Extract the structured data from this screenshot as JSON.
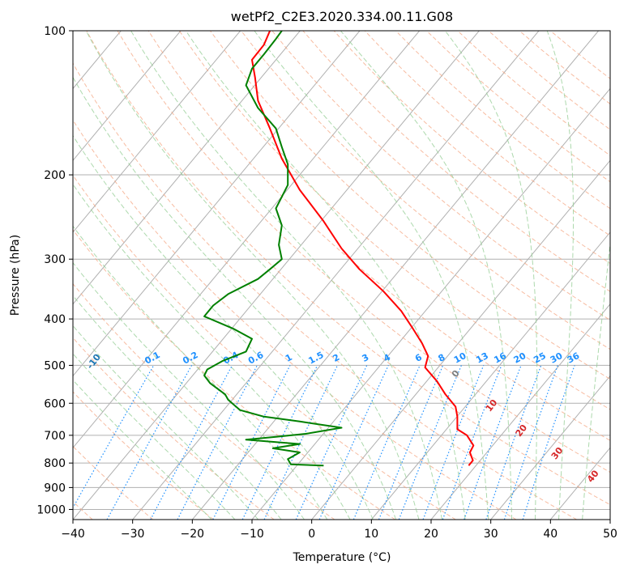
{
  "chart_data": {
    "type": "line",
    "title": "wetPf2_C2E3.2020.334.00.11.G08",
    "xlabel": "Temperature (°C)",
    "ylabel": "Pressure (hPa)",
    "xlim": [
      -40,
      50
    ],
    "ylim": [
      1050,
      100
    ],
    "yscale": "log",
    "x_ticks": [
      "−40",
      "−30",
      "−20",
      "−10",
      "0",
      "10",
      "20",
      "30",
      "40",
      "50"
    ],
    "y_ticks": [
      "100",
      "200",
      "300",
      "400",
      "500",
      "600",
      "700",
      "800",
      "900",
      "1000"
    ],
    "grid": true,
    "series": [
      {
        "role": "temperature",
        "color": "#ff0000",
        "points": [
          [
            26.3,
            810
          ],
          [
            27.0,
            790
          ],
          [
            26.5,
            760
          ],
          [
            27.1,
            735
          ],
          [
            26.0,
            700
          ],
          [
            24.4,
            680
          ],
          [
            24.4,
            640
          ],
          [
            24.1,
            610
          ],
          [
            22.4,
            575
          ],
          [
            21.0,
            540
          ],
          [
            19.0,
            505
          ],
          [
            19.5,
            478
          ],
          [
            18.5,
            450
          ],
          [
            17.0,
            420
          ],
          [
            15.0,
            385
          ],
          [
            12.0,
            350
          ],
          [
            8.0,
            315
          ],
          [
            5.0,
            285
          ],
          [
            2.0,
            250
          ],
          [
            -2.0,
            215
          ],
          [
            -5.0,
            185
          ],
          [
            -7.0,
            160
          ],
          [
            -9.0,
            140
          ],
          [
            -9.5,
            125
          ],
          [
            -10.0,
            115
          ],
          [
            -8.0,
            107
          ],
          [
            -7.0,
            100
          ]
        ]
      },
      {
        "role": "dewpoint",
        "color": "#008000",
        "points": [
          [
            2.0,
            810
          ],
          [
            -3.5,
            805
          ],
          [
            -4.0,
            785
          ],
          [
            -2.0,
            760
          ],
          [
            -6.5,
            745
          ],
          [
            -2.0,
            730
          ],
          [
            -11.0,
            715
          ],
          [
            -6.0,
            705
          ],
          [
            -1.0,
            695
          ],
          [
            5.0,
            675
          ],
          [
            -2.0,
            655
          ],
          [
            -8.0,
            640
          ],
          [
            -12.0,
            620
          ],
          [
            -13.0,
            605
          ],
          [
            -14.0,
            590
          ],
          [
            -14.5,
            575
          ],
          [
            -17.0,
            545
          ],
          [
            -18.0,
            525
          ],
          [
            -17.5,
            510
          ],
          [
            -15.0,
            490
          ],
          [
            -11.0,
            468
          ],
          [
            -10.0,
            440
          ],
          [
            -13.0,
            420
          ],
          [
            -18.0,
            395
          ],
          [
            -16.5,
            375
          ],
          [
            -14.0,
            355
          ],
          [
            -9.0,
            330
          ],
          [
            -7.0,
            315
          ],
          [
            -5.0,
            300
          ],
          [
            -5.5,
            280
          ],
          [
            -5.0,
            255
          ],
          [
            -6.0,
            235
          ],
          [
            -4.0,
            210
          ],
          [
            -4.0,
            190
          ],
          [
            -5.0,
            175
          ],
          [
            -6.0,
            160
          ],
          [
            -9.0,
            145
          ],
          [
            -11.0,
            130
          ],
          [
            -10.0,
            120
          ],
          [
            -8.0,
            112
          ],
          [
            -6.0,
            104
          ],
          [
            -5.0,
            100
          ]
        ]
      }
    ],
    "background_lines": {
      "isotherms_skewed": true,
      "dry_adiabats_theta_C": [
        -100,
        -90,
        -80,
        -70,
        -60,
        -50,
        -40,
        -30,
        -20,
        -10
      ],
      "moist_adiabats_C": [
        0,
        10,
        20,
        30,
        40
      ],
      "mixing_ratio_labels": [
        "0.1",
        "0.2",
        "0.4",
        "0.6",
        "1",
        "1.5",
        "2",
        "3",
        "4",
        "6",
        "8",
        "10",
        "13",
        "16",
        "20",
        "25",
        "30",
        "36"
      ],
      "mixing_ratio_values": [
        0.1,
        0.2,
        0.4,
        0.6,
        1,
        1.5,
        2,
        3,
        4,
        6,
        8,
        10,
        13,
        16,
        20,
        25,
        30,
        36
      ]
    },
    "colors": {
      "grid": "#b0b0b0",
      "dry_adiabat": "#f4a582",
      "moist_adiabat": "#98d098",
      "mixing_ratio": "#1e90ff",
      "dry_label": "#1f77b4",
      "moist_label": "#d62728"
    }
  }
}
